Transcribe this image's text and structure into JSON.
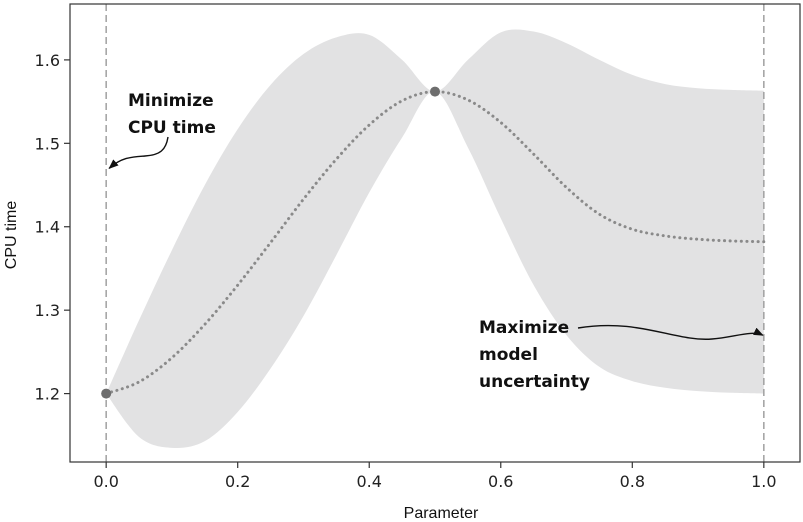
{
  "chart_data": {
    "type": "line",
    "title": "",
    "xlabel": "Parameter",
    "ylabel": "CPU time",
    "xlim": [
      -0.055,
      1.055
    ],
    "ylim": [
      1.118,
      1.667
    ],
    "xticks": [
      0.0,
      0.2,
      0.4,
      0.6,
      0.8,
      1.0
    ],
    "xtick_labels": [
      "0.0",
      "0.2",
      "0.4",
      "0.6",
      "0.8",
      "1.0"
    ],
    "yticks": [
      1.2,
      1.3,
      1.4,
      1.5,
      1.6
    ],
    "ytick_labels": [
      "1.2",
      "1.3",
      "1.4",
      "1.5",
      "1.6"
    ],
    "grid": false,
    "colors": {
      "band": "#e2e2e3",
      "mean": "#8a8a8a",
      "point": "#6e6e6e",
      "dashed": "#a0a0a0",
      "axis": "#333333"
    },
    "x": [
      0.0,
      0.05,
      0.1,
      0.15,
      0.2,
      0.25,
      0.3,
      0.35,
      0.4,
      0.45,
      0.5,
      0.55,
      0.6,
      0.65,
      0.7,
      0.75,
      0.8,
      0.85,
      0.9,
      0.95,
      1.0
    ],
    "series": [
      {
        "role": "mean",
        "values": [
          1.2,
          1.214,
          1.243,
          1.283,
          1.33,
          1.381,
          1.433,
          1.481,
          1.522,
          1.551,
          1.562,
          1.552,
          1.525,
          1.487,
          1.447,
          1.415,
          1.397,
          1.389,
          1.385,
          1.383,
          1.382
        ]
      },
      {
        "role": "upper",
        "values": [
          1.2,
          1.288,
          1.372,
          1.45,
          1.517,
          1.57,
          1.607,
          1.627,
          1.63,
          1.6,
          1.562,
          1.6,
          1.633,
          1.634,
          1.62,
          1.6,
          1.582,
          1.571,
          1.566,
          1.564,
          1.563
        ]
      },
      {
        "role": "lower",
        "values": [
          1.2,
          1.148,
          1.135,
          1.143,
          1.178,
          1.23,
          1.293,
          1.366,
          1.441,
          1.507,
          1.562,
          1.495,
          1.41,
          1.33,
          1.27,
          1.232,
          1.215,
          1.207,
          1.203,
          1.201,
          1.2
        ]
      }
    ],
    "observations": [
      {
        "x": 0.0,
        "y": 1.2
      },
      {
        "x": 0.5,
        "y": 1.562
      }
    ],
    "vlines": [
      0.0,
      1.0
    ],
    "annotations": [
      {
        "lines": [
          "Minimize",
          "CPU time"
        ],
        "arrow_to": {
          "x": 0.0,
          "y": 1.47
        }
      },
      {
        "lines": [
          "Maximize",
          "model",
          "uncertainty"
        ],
        "arrow_to": {
          "x": 1.0,
          "y": 1.27
        }
      }
    ]
  }
}
